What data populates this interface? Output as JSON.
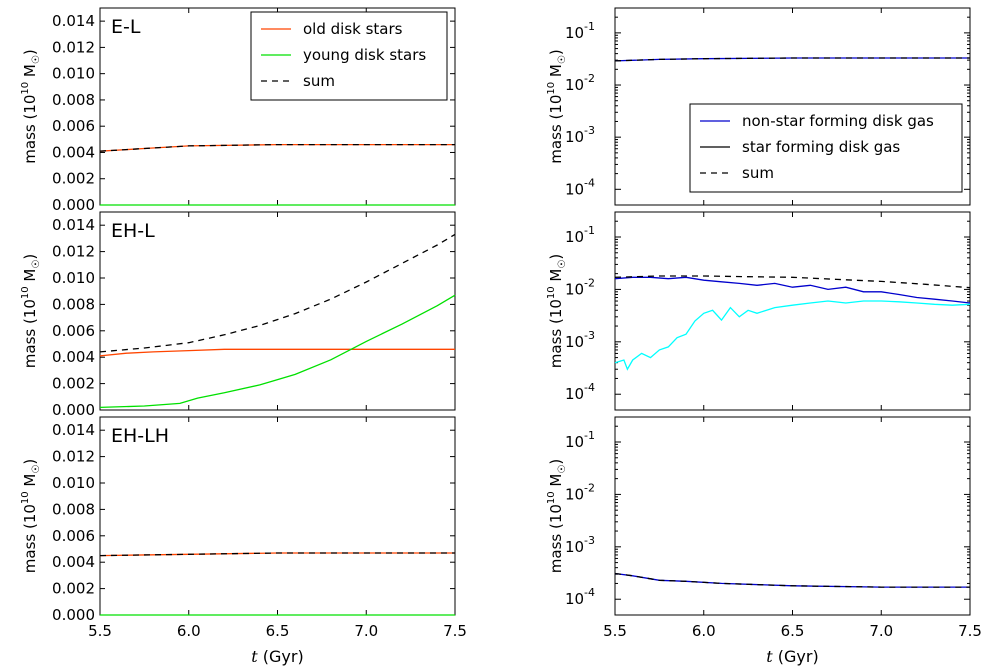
{
  "figure": {
    "x_axis_label_var": "t",
    "x_axis_label_unit": " (Gyr)",
    "y_axis_label_prefix": "mass (10",
    "y_axis_label_exp": "10",
    "y_axis_label_suffix": " M",
    "y_axis_label_sun": "☉",
    "y_axis_label_close": ")"
  },
  "chart_data": [
    {
      "type": "line",
      "id": "stars-EL",
      "panel_label": "E-L",
      "xlim": [
        5.5,
        7.5
      ],
      "ylim": [
        0,
        0.015
      ],
      "yscale": "linear",
      "xticks": [
        "5.5",
        "6.0",
        "6.5",
        "7.0",
        "7.5"
      ],
      "yticks": [
        "0.000",
        "0.002",
        "0.004",
        "0.006",
        "0.008",
        "0.010",
        "0.012",
        "0.014"
      ],
      "legend": {
        "position": "top-right",
        "entries": [
          "old disk stars",
          "young disk stars",
          "sum"
        ]
      },
      "series": [
        {
          "name": "old disk stars",
          "color": "#ff4500",
          "style": "solid",
          "x": [
            5.5,
            5.75,
            6.0,
            6.5,
            7.0,
            7.5
          ],
          "y": [
            0.0041,
            0.0043,
            0.0045,
            0.0046,
            0.0046,
            0.0046
          ]
        },
        {
          "name": "young disk stars",
          "color": "#00e000",
          "style": "solid",
          "x": [
            5.5,
            7.5
          ],
          "y": [
            0.0,
            0.0
          ]
        },
        {
          "name": "sum",
          "color": "#000000",
          "style": "dashed",
          "x": [
            5.5,
            5.75,
            6.0,
            6.5,
            7.0,
            7.5
          ],
          "y": [
            0.0041,
            0.0043,
            0.0045,
            0.0046,
            0.0046,
            0.0046
          ]
        }
      ]
    },
    {
      "type": "line",
      "id": "stars-EHL",
      "panel_label": "EH-L",
      "xlim": [
        5.5,
        7.5
      ],
      "ylim": [
        0,
        0.015
      ],
      "yscale": "linear",
      "xticks": [
        "5.5",
        "6.0",
        "6.5",
        "7.0",
        "7.5"
      ],
      "yticks": [
        "0.000",
        "0.002",
        "0.004",
        "0.006",
        "0.008",
        "0.010",
        "0.012",
        "0.014"
      ],
      "series": [
        {
          "name": "old disk stars",
          "color": "#ff4500",
          "style": "solid",
          "x": [
            5.5,
            5.65,
            5.8,
            6.0,
            6.2,
            6.5,
            7.0,
            7.5
          ],
          "y": [
            0.0041,
            0.0043,
            0.0044,
            0.0045,
            0.0046,
            0.0046,
            0.0046,
            0.0046
          ]
        },
        {
          "name": "young disk stars",
          "color": "#00e000",
          "style": "solid",
          "x": [
            5.5,
            5.75,
            5.95,
            6.05,
            6.2,
            6.4,
            6.6,
            6.8,
            7.0,
            7.2,
            7.4,
            7.5
          ],
          "y": [
            0.0002,
            0.0003,
            0.0005,
            0.0009,
            0.0013,
            0.0019,
            0.0027,
            0.0038,
            0.0052,
            0.0065,
            0.0079,
            0.0087
          ]
        },
        {
          "name": "sum",
          "color": "#000000",
          "style": "dashed",
          "x": [
            5.5,
            5.75,
            6.0,
            6.2,
            6.4,
            6.6,
            6.8,
            7.0,
            7.2,
            7.4,
            7.5
          ],
          "y": [
            0.0044,
            0.0047,
            0.0051,
            0.0057,
            0.0064,
            0.0073,
            0.0084,
            0.0097,
            0.0111,
            0.0125,
            0.0133
          ]
        }
      ]
    },
    {
      "type": "line",
      "id": "stars-EHLH",
      "panel_label": "EH-LH",
      "xlim": [
        5.5,
        7.5
      ],
      "ylim": [
        0,
        0.015
      ],
      "yscale": "linear",
      "xticks": [
        "5.5",
        "6.0",
        "6.5",
        "7.0",
        "7.5"
      ],
      "yticks": [
        "0.000",
        "0.002",
        "0.004",
        "0.006",
        "0.008",
        "0.010",
        "0.012",
        "0.014"
      ],
      "series": [
        {
          "name": "old disk stars",
          "color": "#ff4500",
          "style": "solid",
          "x": [
            5.5,
            6.0,
            6.5,
            7.0,
            7.5
          ],
          "y": [
            0.0045,
            0.0046,
            0.0047,
            0.0047,
            0.0047
          ]
        },
        {
          "name": "young disk stars",
          "color": "#00e000",
          "style": "solid",
          "x": [
            5.5,
            7.5
          ],
          "y": [
            0.0,
            0.0
          ]
        },
        {
          "name": "sum",
          "color": "#000000",
          "style": "dashed",
          "x": [
            5.5,
            6.0,
            6.5,
            7.0,
            7.5
          ],
          "y": [
            0.0045,
            0.0046,
            0.0047,
            0.0047,
            0.0047
          ]
        }
      ]
    },
    {
      "type": "line",
      "id": "gas-EL",
      "xlim": [
        5.5,
        7.5
      ],
      "ylim": [
        5e-05,
        0.3
      ],
      "yscale": "log",
      "xticks": [
        "5.5",
        "6.0",
        "6.5",
        "7.0",
        "7.5"
      ],
      "ytick_exps": [
        "-4",
        "-3",
        "-2",
        "-1"
      ],
      "legend": {
        "position": "lower-right",
        "entries": [
          "non-star forming disk gas",
          "star forming disk gas",
          "sum"
        ]
      },
      "series": [
        {
          "name": "non-star forming disk gas",
          "color": "#0000cc",
          "style": "solid",
          "x": [
            5.5,
            5.75,
            6.0,
            6.5,
            7.0,
            7.5
          ],
          "y": [
            0.029,
            0.031,
            0.032,
            0.033,
            0.033,
            0.033
          ]
        },
        {
          "name": "sum",
          "color": "#000000",
          "style": "dashed",
          "x": [
            5.5,
            5.75,
            6.0,
            6.5,
            7.0,
            7.5
          ],
          "y": [
            0.029,
            0.031,
            0.032,
            0.033,
            0.033,
            0.033
          ]
        }
      ]
    },
    {
      "type": "line",
      "id": "gas-EHL",
      "xlim": [
        5.5,
        7.5
      ],
      "ylim": [
        5e-05,
        0.3
      ],
      "yscale": "log",
      "xticks": [
        "5.5",
        "6.0",
        "6.5",
        "7.0",
        "7.5"
      ],
      "ytick_exps": [
        "-4",
        "-3",
        "-2",
        "-1"
      ],
      "series": [
        {
          "name": "non-star forming disk gas",
          "color": "#0000cc",
          "style": "solid",
          "x": [
            5.5,
            5.6,
            5.7,
            5.8,
            5.9,
            6.0,
            6.1,
            6.2,
            6.3,
            6.4,
            6.5,
            6.6,
            6.7,
            6.8,
            6.9,
            7.0,
            7.1,
            7.2,
            7.3,
            7.4,
            7.5
          ],
          "y": [
            0.016,
            0.017,
            0.017,
            0.016,
            0.017,
            0.015,
            0.014,
            0.013,
            0.012,
            0.013,
            0.011,
            0.012,
            0.01,
            0.011,
            0.009,
            0.009,
            0.008,
            0.007,
            0.0065,
            0.006,
            0.0055
          ]
        },
        {
          "name": "star forming disk gas",
          "color": "#00ffff",
          "style": "solid",
          "x": [
            5.5,
            5.55,
            5.57,
            5.6,
            5.65,
            5.7,
            5.75,
            5.8,
            5.85,
            5.9,
            5.95,
            6.0,
            6.05,
            6.1,
            6.15,
            6.2,
            6.25,
            6.3,
            6.4,
            6.5,
            6.6,
            6.7,
            6.8,
            6.9,
            7.0,
            7.1,
            7.2,
            7.3,
            7.4,
            7.5
          ],
          "y": [
            0.0004,
            0.00045,
            0.0003,
            0.00045,
            0.0006,
            0.0005,
            0.0007,
            0.0008,
            0.0012,
            0.0014,
            0.0025,
            0.0035,
            0.004,
            0.0026,
            0.0045,
            0.003,
            0.004,
            0.0035,
            0.0045,
            0.005,
            0.0055,
            0.006,
            0.0055,
            0.006,
            0.006,
            0.0058,
            0.0055,
            0.0052,
            0.005,
            0.0052
          ]
        },
        {
          "name": "sum",
          "color": "#000000",
          "style": "dashed",
          "x": [
            5.5,
            5.75,
            6.0,
            6.25,
            6.5,
            6.75,
            7.0,
            7.25,
            7.5
          ],
          "y": [
            0.017,
            0.018,
            0.018,
            0.0175,
            0.017,
            0.0155,
            0.0142,
            0.0125,
            0.0108
          ]
        }
      ]
    },
    {
      "type": "line",
      "id": "gas-EHLH",
      "xlim": [
        5.5,
        7.5
      ],
      "ylim": [
        5e-05,
        0.3
      ],
      "yscale": "log",
      "xticks": [
        "5.5",
        "6.0",
        "6.5",
        "7.0",
        "7.5"
      ],
      "ytick_exps": [
        "-4",
        "-3",
        "-2",
        "-1"
      ],
      "series": [
        {
          "name": "non-star forming disk gas",
          "color": "#0000cc",
          "style": "solid",
          "x": [
            5.5,
            5.6,
            5.75,
            5.9,
            6.1,
            6.5,
            7.0,
            7.5
          ],
          "y": [
            0.00031,
            0.00028,
            0.00023,
            0.00022,
            0.0002,
            0.00018,
            0.00017,
            0.00017
          ]
        },
        {
          "name": "sum",
          "color": "#000000",
          "style": "dashed",
          "x": [
            5.5,
            5.6,
            5.75,
            5.9,
            6.1,
            6.5,
            7.0,
            7.5
          ],
          "y": [
            0.00031,
            0.00028,
            0.00023,
            0.00022,
            0.0002,
            0.00018,
            0.00017,
            0.00017
          ]
        }
      ]
    }
  ]
}
